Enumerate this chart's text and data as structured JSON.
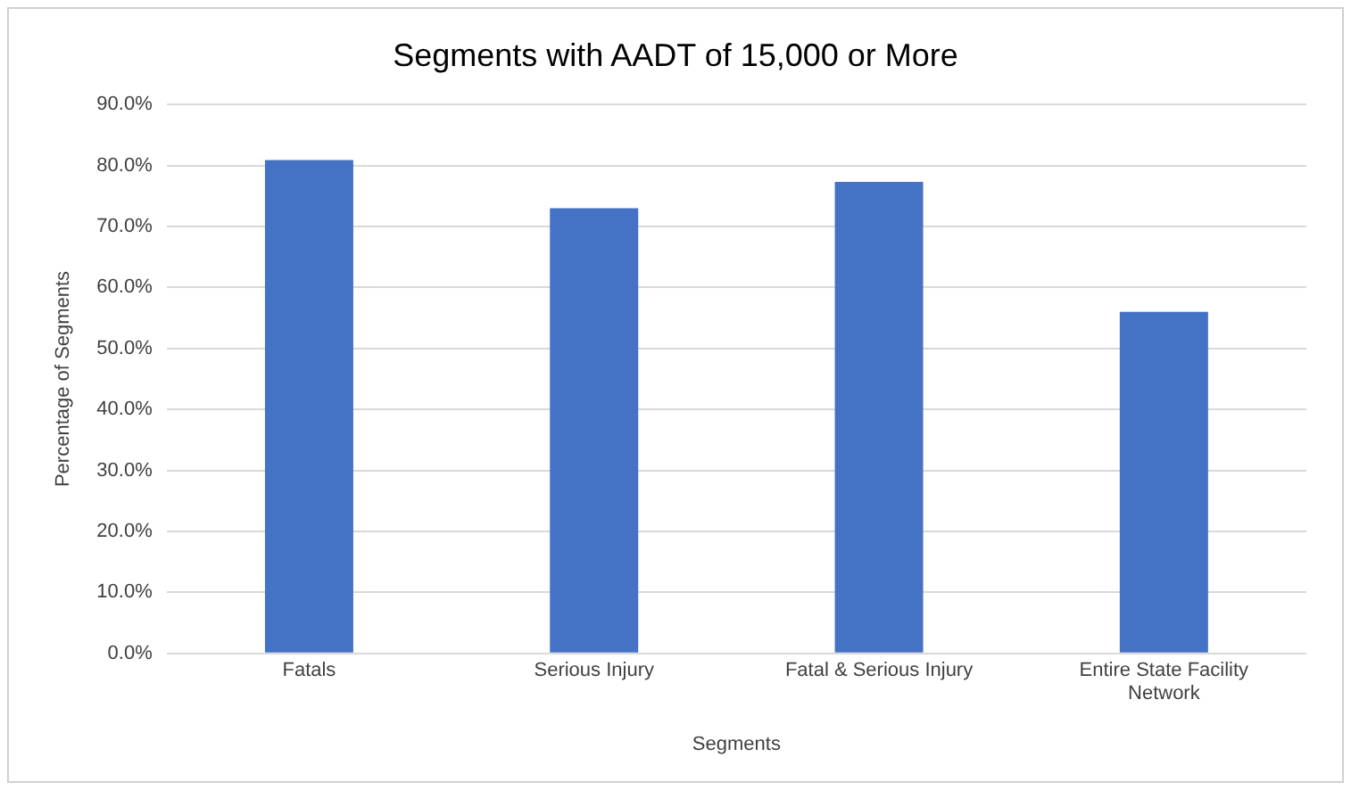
{
  "chart_data": {
    "type": "bar",
    "title": "Segments with AADT of 15,000 or More",
    "xlabel": "Segments",
    "ylabel": "Percentage of Segments",
    "categories": [
      "Fatals",
      "Serious Injury",
      "Fatal & Serious Injury",
      "Entire State Facility Network"
    ],
    "values": [
      80.9,
      73.0,
      77.3,
      56.0
    ],
    "color": "#4472c4",
    "ylim": [
      0,
      90
    ],
    "yticks": [
      {
        "value": 0,
        "label": "0.0%"
      },
      {
        "value": 10,
        "label": "10.0%"
      },
      {
        "value": 20,
        "label": "20.0%"
      },
      {
        "value": 30,
        "label": "30.0%"
      },
      {
        "value": 40,
        "label": "40.0%"
      },
      {
        "value": 50,
        "label": "50.0%"
      },
      {
        "value": 60,
        "label": "60.0%"
      },
      {
        "value": 70,
        "label": "70.0%"
      },
      {
        "value": 80,
        "label": "80.0%"
      },
      {
        "value": 90,
        "label": "90.0%"
      }
    ],
    "grid": "y",
    "legend": false
  }
}
